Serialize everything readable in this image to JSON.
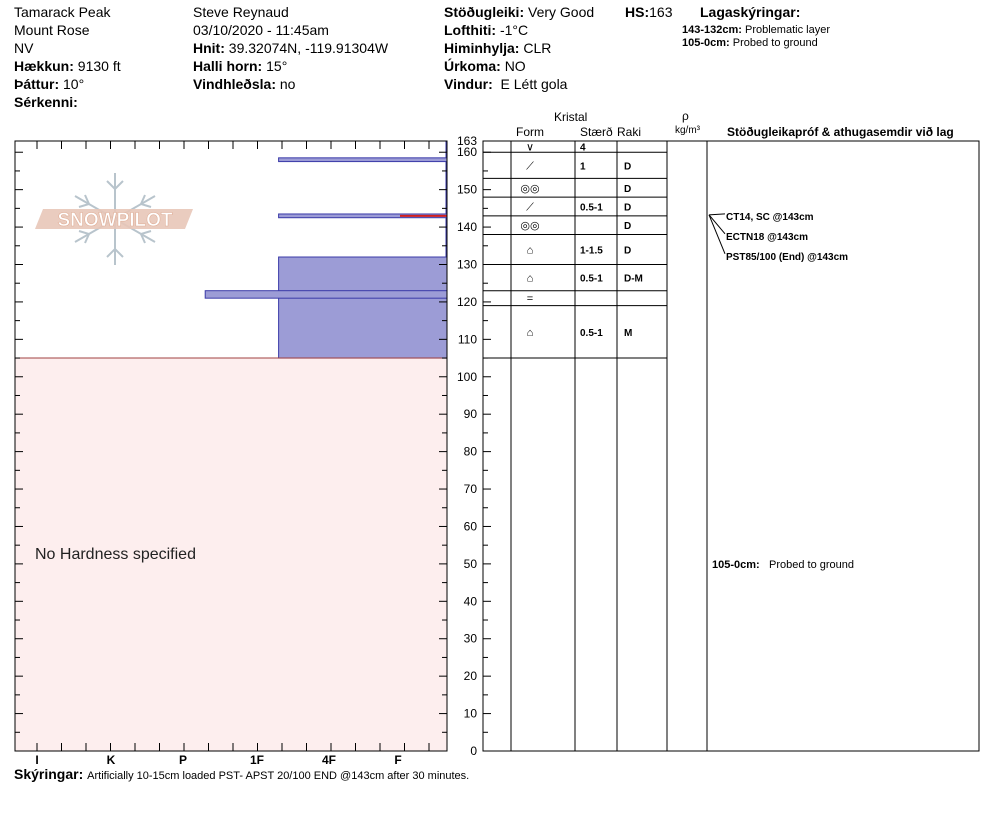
{
  "header": {
    "location": "Tamarack Peak",
    "area": "Mount Rose",
    "state": "NV",
    "elevation_label": "Hækkun:",
    "elevation": "9130 ft",
    "aspect_label": "Þáttur:",
    "aspect": "10°",
    "features_label": "Sérkenni:",
    "observer": "Steve Reynaud",
    "datetime": "03/10/2020 - 11:45am",
    "coords_label": "Hnit:",
    "coords": "39.32074N, -119.91304W",
    "slope_label": "Halli horn:",
    "slope": "15°",
    "wind_loading_label": "Vindhleðsla:",
    "wind_loading": "no",
    "stability_label": "Stöðugleiki:",
    "stability": "Very Good",
    "hs_label": "HS:",
    "hs": "163",
    "airtemp_label": "Lofthiti:",
    "airtemp": "-1°C",
    "sky_label": "Himinhylja:",
    "sky": "CLR",
    "precip_label": "Úrkoma:",
    "precip": "NO",
    "wind_label": "Vindur:",
    "wind": "E Létt gola",
    "legend_title": "Lagaskýringar:",
    "legend": [
      {
        "range": "143-132cm:",
        "text": "Problematic layer"
      },
      {
        "range": "105-0cm:",
        "text": "Probed to ground"
      }
    ]
  },
  "columns": {
    "kristal": "Kristal",
    "form": "Form",
    "size": "Stærð",
    "moisture": "Raki",
    "rho": "ρ",
    "density_unit": "kg/m³",
    "tests": "Stöðugleikapróf & athugasemdir við lag"
  },
  "logo_text": "SNOWPILOT",
  "no_hardness": "No Hardness specified",
  "footer": {
    "label": "Skýringar:",
    "text": "Artificially 10-15cm loaded PST- APST 20/100 END @143cm after 30 minutes."
  },
  "chart_data": {
    "type": "bar",
    "orientation": "horizontal",
    "ylabel": "",
    "ylim": [
      0,
      163
    ],
    "yticks": [
      0,
      10,
      20,
      30,
      40,
      50,
      60,
      70,
      80,
      90,
      100,
      110,
      120,
      130,
      140,
      150,
      160,
      163
    ],
    "hardness_categories": [
      "I",
      "K",
      "P",
      "1F",
      "4F",
      "F"
    ],
    "hardness_scale": "F at index 5, I at index 0 (hand hardness)",
    "hardness_layers": [
      {
        "top": 163,
        "bottom": 132,
        "hardness": 5.8
      },
      {
        "top": 132,
        "bottom": 105,
        "hardness": 3.3
      },
      {
        "top": 158.5,
        "bottom": 157.5,
        "hardness": 3.3
      },
      {
        "top": 143.5,
        "bottom": 142.5,
        "hardness": 3.3
      },
      {
        "top": 123,
        "bottom": 121,
        "hardness": 2.3
      }
    ],
    "problem_layer_cm": 143,
    "probed_region": {
      "top": 105,
      "bottom": 0
    },
    "layers": [
      {
        "top": 163,
        "bottom": 160,
        "form": "∨",
        "size": "4",
        "moisture": ""
      },
      {
        "top": 160,
        "bottom": 153,
        "form": "⟋",
        "size": "1",
        "moisture": "D"
      },
      {
        "top": 153,
        "bottom": 148,
        "form": "◎◎",
        "size": "",
        "moisture": "D"
      },
      {
        "top": 148,
        "bottom": 143,
        "form": "⟋",
        "size": "0.5-1",
        "moisture": "D"
      },
      {
        "top": 143,
        "bottom": 138,
        "form": "◎◎",
        "size": "",
        "moisture": "D"
      },
      {
        "top": 138,
        "bottom": 130,
        "form": "⌂",
        "size": "1-1.5",
        "moisture": "D"
      },
      {
        "top": 130,
        "bottom": 123,
        "form": "⌂",
        "size": "0.5-1",
        "moisture": "D-M"
      },
      {
        "top": 123,
        "bottom": 119,
        "form": "=",
        "size": "",
        "moisture": ""
      },
      {
        "top": 119,
        "bottom": 105,
        "form": "⌂",
        "size": "0.5-1",
        "moisture": "M"
      }
    ],
    "tests": [
      {
        "depth": 143,
        "text": "CT14, SC @143cm"
      },
      {
        "depth": 143,
        "text": "ECTN18 @143cm"
      },
      {
        "depth": 143,
        "text": "PST85/100 (End) @143cm"
      }
    ],
    "comments": [
      {
        "depth": 50,
        "range": "105-0cm:",
        "text": "Probed to ground"
      }
    ]
  }
}
